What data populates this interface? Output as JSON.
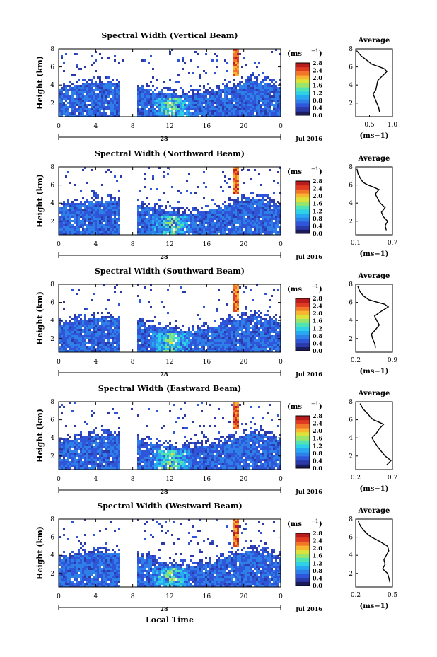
{
  "figure": {
    "date_label": "Jul 2016",
    "day_label": "28",
    "xlabel": "Local Time",
    "height_label": "Height (km)",
    "unit_label": "(ms",
    "unit_sup": "−1",
    "avg_title": "Average"
  },
  "colors": {
    "scale": [
      "#1b1b5e",
      "#2b3aa8",
      "#2f56d8",
      "#2f7fe8",
      "#27a8f0",
      "#2fd1e6",
      "#52e3b0",
      "#9be46c",
      "#dde23a",
      "#f8b530",
      "#f2762a",
      "#df3a22",
      "#b81c1c"
    ]
  },
  "chart_data": [
    {
      "type": "heatmap",
      "title": "Spectral Width (Vertical Beam)",
      "ylabel": "Height (km)",
      "xlabel": "",
      "x_ticks": [
        "0",
        "4",
        "8",
        "12",
        "16",
        "20",
        "0"
      ],
      "y_ticks": [
        "2",
        "4",
        "6",
        "8"
      ],
      "ylim": [
        0.5,
        8
      ],
      "xlim": [
        0,
        24
      ],
      "colorbar_ticks": [
        "0.0",
        "0.4",
        "0.8",
        "1.2",
        "1.6",
        "2.0",
        "2.4",
        "2.8"
      ],
      "colorbar_range": [
        0,
        2.8
      ],
      "gap_hours": [
        6.5,
        8.3
      ],
      "average_profile": {
        "xlabel": "(ms−1)",
        "x_ticks": [
          "0.5",
          "1.0"
        ],
        "xlim": [
          0.2,
          1.0
        ],
        "heights": [
          1.0,
          1.5,
          2.0,
          2.5,
          3.0,
          3.5,
          4.0,
          4.5,
          5.0,
          5.5,
          5.8,
          6.0,
          6.3,
          6.7,
          7.2,
          7.8
        ],
        "values": [
          0.72,
          0.7,
          0.66,
          0.62,
          0.58,
          0.64,
          0.66,
          0.68,
          0.78,
          0.88,
          0.82,
          0.72,
          0.55,
          0.45,
          0.32,
          0.22
        ]
      }
    },
    {
      "type": "heatmap",
      "title": "Spectral Width (Northward Beam)",
      "ylabel": "Height (km)",
      "xlabel": "",
      "x_ticks": [
        "0",
        "4",
        "8",
        "12",
        "16",
        "20",
        "0"
      ],
      "y_ticks": [
        "2",
        "4",
        "6",
        "8"
      ],
      "ylim": [
        0.5,
        8
      ],
      "xlim": [
        0,
        24
      ],
      "colorbar_ticks": [
        "0.0",
        "0.4",
        "0.8",
        "1.2",
        "1.6",
        "2.0",
        "2.4",
        "2.8"
      ],
      "colorbar_range": [
        0,
        2.8
      ],
      "gap_hours": [
        6.5,
        8.3
      ],
      "average_profile": {
        "xlabel": "(ms−1)",
        "x_ticks": [
          "0.1",
          "0.7"
        ],
        "xlim": [
          0.1,
          0.7
        ],
        "heights": [
          1.0,
          1.5,
          2.0,
          2.5,
          3.0,
          3.5,
          4.0,
          4.5,
          5.0,
          5.5,
          5.8,
          6.0,
          6.3,
          6.7,
          7.2,
          7.8
        ],
        "values": [
          0.6,
          0.58,
          0.62,
          0.55,
          0.52,
          0.58,
          0.5,
          0.46,
          0.42,
          0.48,
          0.38,
          0.3,
          0.22,
          0.18,
          0.14,
          0.12
        ]
      }
    },
    {
      "type": "heatmap",
      "title": "Spectral Width (Southward Beam)",
      "ylabel": "Height (km)",
      "xlabel": "",
      "x_ticks": [
        "0",
        "4",
        "8",
        "12",
        "16",
        "20",
        "0"
      ],
      "y_ticks": [
        "2",
        "4",
        "6",
        "8"
      ],
      "ylim": [
        0.5,
        8
      ],
      "xlim": [
        0,
        24
      ],
      "colorbar_ticks": [
        "0.0",
        "0.4",
        "0.8",
        "1.2",
        "1.6",
        "2.0",
        "2.4",
        "2.8"
      ],
      "colorbar_range": [
        0,
        2.8
      ],
      "gap_hours": [
        6.5,
        8.3
      ],
      "average_profile": {
        "xlabel": "(ms−1)",
        "x_ticks": [
          "0.2",
          "0.9"
        ],
        "xlim": [
          0.2,
          0.9
        ],
        "heights": [
          1.0,
          1.5,
          2.0,
          2.5,
          3.0,
          3.5,
          4.0,
          4.5,
          5.0,
          5.5,
          5.8,
          6.0,
          6.3,
          6.7,
          7.2,
          7.8
        ],
        "values": [
          0.58,
          0.56,
          0.52,
          0.5,
          0.58,
          0.65,
          0.6,
          0.56,
          0.68,
          0.82,
          0.75,
          0.62,
          0.45,
          0.35,
          0.28,
          0.24
        ]
      }
    },
    {
      "type": "heatmap",
      "title": "Spectral Width (Eastward Beam)",
      "ylabel": "Height (km)",
      "xlabel": "",
      "x_ticks": [
        "0",
        "4",
        "8",
        "12",
        "16",
        "20",
        "0"
      ],
      "y_ticks": [
        "2",
        "4",
        "6",
        "8"
      ],
      "ylim": [
        0.5,
        8
      ],
      "xlim": [
        0,
        24
      ],
      "colorbar_ticks": [
        "0.0",
        "0.4",
        "0.8",
        "1.2",
        "1.6",
        "2.0",
        "2.4",
        "2.8"
      ],
      "colorbar_range": [
        0,
        2.8
      ],
      "gap_hours": [
        6.5,
        8.3
      ],
      "average_profile": {
        "xlabel": "(ms−1)",
        "x_ticks": [
          "0.2",
          "0.7"
        ],
        "xlim": [
          0.2,
          0.7
        ],
        "heights": [
          1.0,
          1.5,
          2.0,
          2.5,
          3.0,
          3.5,
          4.0,
          4.5,
          5.0,
          5.5,
          5.8,
          6.0,
          6.3,
          6.7,
          7.2,
          7.8
        ],
        "values": [
          0.62,
          0.68,
          0.6,
          0.55,
          0.5,
          0.46,
          0.42,
          0.48,
          0.52,
          0.58,
          0.5,
          0.44,
          0.4,
          0.36,
          0.3,
          0.26
        ]
      }
    },
    {
      "type": "heatmap",
      "title": "Spectral Width (Westward Beam)",
      "ylabel": "Height (km)",
      "xlabel": "Local Time",
      "x_ticks": [
        "0",
        "4",
        "8",
        "12",
        "16",
        "20",
        "0"
      ],
      "y_ticks": [
        "2",
        "4",
        "6",
        "8"
      ],
      "ylim": [
        0.5,
        8
      ],
      "xlim": [
        0,
        24
      ],
      "colorbar_ticks": [
        "0.0",
        "0.4",
        "0.8",
        "1.2",
        "1.6",
        "2.0",
        "2.4",
        "2.8"
      ],
      "colorbar_range": [
        0,
        2.8
      ],
      "gap_hours": [
        6.5,
        8.3
      ],
      "average_profile": {
        "xlabel": "(ms−1)",
        "x_ticks": [
          "0.2",
          "0.5"
        ],
        "xlim": [
          0.2,
          0.5
        ],
        "heights": [
          1.0,
          1.5,
          2.0,
          2.5,
          3.0,
          3.5,
          4.0,
          4.5,
          5.0,
          5.5,
          5.8,
          6.0,
          6.3,
          6.7,
          7.2,
          7.8
        ],
        "values": [
          0.48,
          0.47,
          0.46,
          0.42,
          0.44,
          0.43,
          0.45,
          0.47,
          0.46,
          0.4,
          0.36,
          0.33,
          0.3,
          0.27,
          0.24,
          0.22
        ]
      }
    }
  ]
}
